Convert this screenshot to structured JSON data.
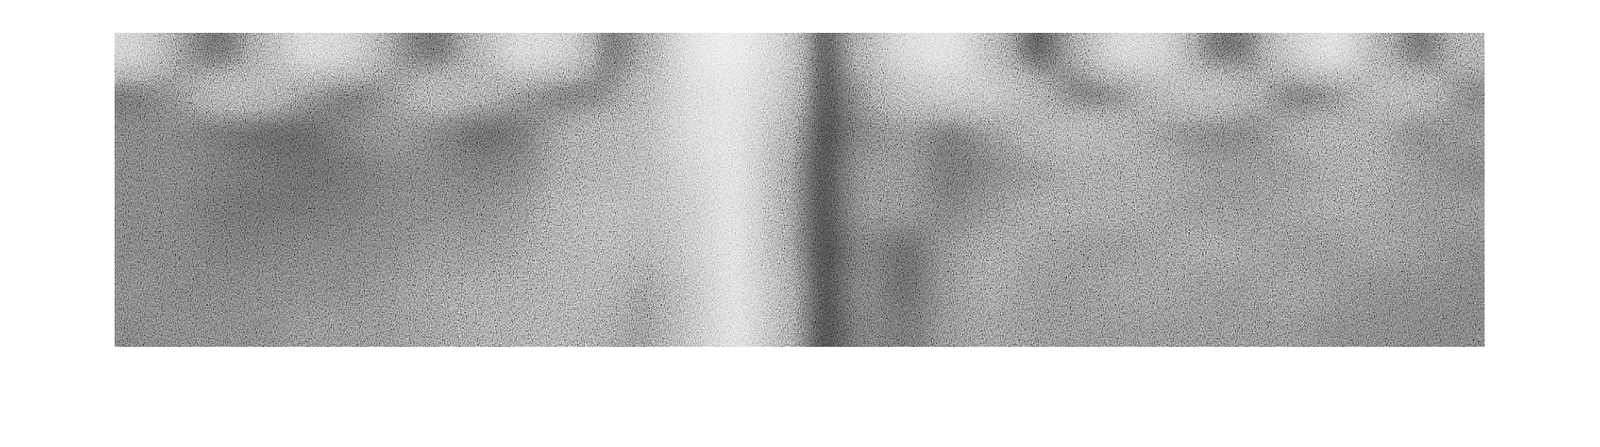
{
  "chart_data": {
    "type": "heatmap",
    "tick_labels": false,
    "zlim": [
      0,
      1
    ],
    "cells": [
      [
        0.75,
        0.45,
        0.3,
        0.55,
        0.8,
        0.75,
        0.45,
        0.3,
        0.55,
        0.8,
        0.75,
        0.3,
        0.5,
        0.85,
        0.9,
        0.75,
        0.1,
        0.55,
        0.8,
        0.85,
        0.6,
        0.2,
        0.5,
        0.8,
        0.75,
        0.35,
        0.35,
        0.7,
        0.85,
        0.55,
        0.3,
        0.55
      ],
      [
        0.35,
        0.45,
        0.6,
        0.6,
        0.45,
        0.35,
        0.45,
        0.6,
        0.55,
        0.45,
        0.35,
        0.4,
        0.6,
        0.8,
        0.85,
        0.7,
        0.15,
        0.45,
        0.65,
        0.7,
        0.7,
        0.55,
        0.35,
        0.4,
        0.6,
        0.65,
        0.55,
        0.35,
        0.4,
        0.6,
        0.6,
        0.4
      ],
      [
        0.4,
        0.4,
        0.35,
        0.3,
        0.3,
        0.4,
        0.45,
        0.4,
        0.3,
        0.35,
        0.5,
        0.55,
        0.6,
        0.8,
        0.85,
        0.6,
        0.15,
        0.4,
        0.45,
        0.35,
        0.45,
        0.55,
        0.6,
        0.55,
        0.45,
        0.4,
        0.4,
        0.5,
        0.55,
        0.5,
        0.4,
        0.45
      ],
      [
        0.4,
        0.4,
        0.38,
        0.35,
        0.33,
        0.35,
        0.4,
        0.4,
        0.38,
        0.4,
        0.5,
        0.55,
        0.6,
        0.75,
        0.85,
        0.55,
        0.15,
        0.45,
        0.45,
        0.35,
        0.4,
        0.45,
        0.5,
        0.5,
        0.5,
        0.45,
        0.45,
        0.45,
        0.5,
        0.5,
        0.45,
        0.4
      ],
      [
        0.4,
        0.4,
        0.35,
        0.35,
        0.35,
        0.38,
        0.4,
        0.42,
        0.42,
        0.45,
        0.55,
        0.6,
        0.6,
        0.7,
        0.85,
        0.55,
        0.15,
        0.45,
        0.45,
        0.38,
        0.45,
        0.5,
        0.5,
        0.5,
        0.48,
        0.45,
        0.45,
        0.48,
        0.5,
        0.48,
        0.45,
        0.45
      ],
      [
        0.4,
        0.4,
        0.38,
        0.38,
        0.4,
        0.4,
        0.42,
        0.45,
        0.45,
        0.48,
        0.55,
        0.58,
        0.55,
        0.7,
        0.85,
        0.55,
        0.15,
        0.4,
        0.3,
        0.45,
        0.5,
        0.48,
        0.45,
        0.45,
        0.48,
        0.5,
        0.48,
        0.45,
        0.45,
        0.48,
        0.45,
        0.42
      ],
      [
        0.42,
        0.4,
        0.4,
        0.42,
        0.42,
        0.42,
        0.45,
        0.48,
        0.5,
        0.5,
        0.55,
        0.55,
        0.45,
        0.65,
        0.85,
        0.6,
        0.15,
        0.42,
        0.3,
        0.45,
        0.5,
        0.45,
        0.45,
        0.48,
        0.48,
        0.45,
        0.45,
        0.48,
        0.45,
        0.42,
        0.42,
        0.4
      ],
      [
        0.4,
        0.42,
        0.42,
        0.42,
        0.45,
        0.45,
        0.45,
        0.48,
        0.5,
        0.52,
        0.55,
        0.5,
        0.45,
        0.65,
        0.85,
        0.6,
        0.15,
        0.4,
        0.35,
        0.45,
        0.48,
        0.45,
        0.45,
        0.45,
        0.45,
        0.45,
        0.45,
        0.45,
        0.42,
        0.42,
        0.4,
        0.4
      ]
    ]
  }
}
